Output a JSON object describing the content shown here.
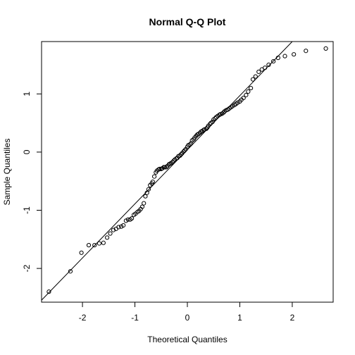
{
  "chart_data": {
    "type": "scatter",
    "title": "Normal Q-Q Plot",
    "xlabel": "Theoretical Quantiles",
    "ylabel": "Sample Quantiles",
    "xlim": [
      -2.78,
      2.78
    ],
    "ylim": [
      -2.58,
      1.9
    ],
    "x_ticks": [
      -2,
      -1,
      0,
      1,
      2
    ],
    "x_tick_labels": [
      "-2",
      "-1",
      "0",
      "1",
      "2"
    ],
    "y_ticks": [
      -2,
      -1,
      0,
      1
    ],
    "y_tick_labels": [
      "-2",
      "-1",
      "0",
      "1"
    ],
    "reference_line": {
      "intercept": 0.04,
      "slope": 0.93
    },
    "grid": false,
    "legend": "none",
    "points": [
      [
        -2.64,
        -2.4
      ],
      [
        -2.23,
        -2.05
      ],
      [
        -2.02,
        -1.73
      ],
      [
        -1.88,
        -1.6
      ],
      [
        -1.77,
        -1.6
      ],
      [
        -1.68,
        -1.57
      ],
      [
        -1.6,
        -1.56
      ],
      [
        -1.53,
        -1.47
      ],
      [
        -1.47,
        -1.4
      ],
      [
        -1.41,
        -1.34
      ],
      [
        -1.36,
        -1.32
      ],
      [
        -1.31,
        -1.29
      ],
      [
        -1.26,
        -1.28
      ],
      [
        -1.22,
        -1.26
      ],
      [
        -1.17,
        -1.18
      ],
      [
        -1.13,
        -1.16
      ],
      [
        -1.09,
        -1.16
      ],
      [
        -1.06,
        -1.14
      ],
      [
        -1.02,
        -1.08
      ],
      [
        -0.99,
        -1.06
      ],
      [
        -0.95,
        -1.03
      ],
      [
        -0.92,
        -1.01
      ],
      [
        -0.89,
        -0.98
      ],
      [
        -0.86,
        -0.94
      ],
      [
        -0.83,
        -0.88
      ],
      [
        -0.8,
        -0.76
      ],
      [
        -0.77,
        -0.7
      ],
      [
        -0.74,
        -0.64
      ],
      [
        -0.71,
        -0.57
      ],
      [
        -0.68,
        -0.54
      ],
      [
        -0.66,
        -0.51
      ],
      [
        -0.63,
        -0.42
      ],
      [
        -0.6,
        -0.35
      ],
      [
        -0.58,
        -0.32
      ],
      [
        -0.55,
        -0.3
      ],
      [
        -0.53,
        -0.29
      ],
      [
        -0.5,
        -0.29
      ],
      [
        -0.48,
        -0.28
      ],
      [
        -0.45,
        -0.26
      ],
      [
        -0.43,
        -0.26
      ],
      [
        -0.4,
        -0.26
      ],
      [
        -0.38,
        -0.24
      ],
      [
        -0.35,
        -0.21
      ],
      [
        -0.33,
        -0.2
      ],
      [
        -0.31,
        -0.19
      ],
      [
        -0.28,
        -0.17
      ],
      [
        -0.26,
        -0.15
      ],
      [
        -0.24,
        -0.13
      ],
      [
        -0.21,
        -0.11
      ],
      [
        -0.19,
        -0.1
      ],
      [
        -0.17,
        -0.07
      ],
      [
        -0.14,
        -0.06
      ],
      [
        -0.12,
        -0.04
      ],
      [
        -0.1,
        -0.02
      ],
      [
        -0.07,
        0.01
      ],
      [
        -0.05,
        0.03
      ],
      [
        -0.03,
        0.05
      ],
      [
        0.0,
        0.09
      ],
      [
        0.02,
        0.12
      ],
      [
        0.05,
        0.13
      ],
      [
        0.07,
        0.15
      ],
      [
        0.09,
        0.2
      ],
      [
        0.12,
        0.22
      ],
      [
        0.14,
        0.25
      ],
      [
        0.17,
        0.28
      ],
      [
        0.19,
        0.3
      ],
      [
        0.21,
        0.31
      ],
      [
        0.24,
        0.33
      ],
      [
        0.26,
        0.35
      ],
      [
        0.28,
        0.36
      ],
      [
        0.31,
        0.38
      ],
      [
        0.33,
        0.39
      ],
      [
        0.36,
        0.4
      ],
      [
        0.38,
        0.42
      ],
      [
        0.4,
        0.45
      ],
      [
        0.43,
        0.48
      ],
      [
        0.45,
        0.5
      ],
      [
        0.48,
        0.52
      ],
      [
        0.5,
        0.56
      ],
      [
        0.53,
        0.58
      ],
      [
        0.55,
        0.6
      ],
      [
        0.58,
        0.62
      ],
      [
        0.61,
        0.64
      ],
      [
        0.63,
        0.65
      ],
      [
        0.66,
        0.66
      ],
      [
        0.69,
        0.68
      ],
      [
        0.71,
        0.7
      ],
      [
        0.74,
        0.72
      ],
      [
        0.77,
        0.73
      ],
      [
        0.8,
        0.75
      ],
      [
        0.83,
        0.77
      ],
      [
        0.86,
        0.79
      ],
      [
        0.9,
        0.81
      ],
      [
        0.93,
        0.83
      ],
      [
        0.96,
        0.85
      ],
      [
        1.0,
        0.87
      ],
      [
        1.03,
        0.9
      ],
      [
        1.07,
        0.93
      ],
      [
        1.12,
        0.98
      ],
      [
        1.16,
        1.04
      ],
      [
        1.21,
        1.1
      ],
      [
        1.25,
        1.25
      ],
      [
        1.3,
        1.3
      ],
      [
        1.36,
        1.38
      ],
      [
        1.42,
        1.42
      ],
      [
        1.48,
        1.45
      ],
      [
        1.55,
        1.5
      ],
      [
        1.64,
        1.56
      ],
      [
        1.73,
        1.62
      ],
      [
        1.86,
        1.65
      ],
      [
        2.03,
        1.68
      ],
      [
        2.26,
        1.74
      ],
      [
        2.64,
        1.78
      ]
    ]
  }
}
